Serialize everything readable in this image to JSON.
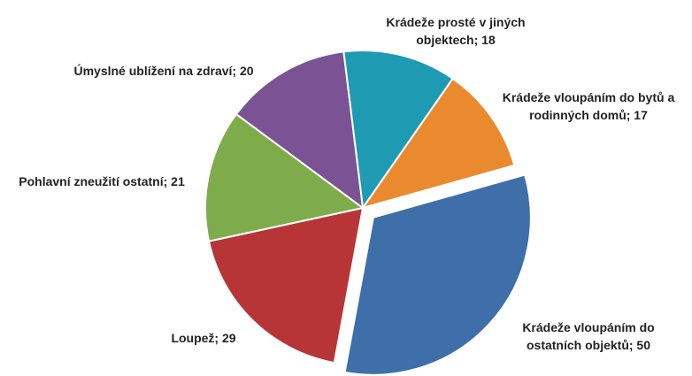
{
  "chart_data": {
    "type": "pie",
    "values": [
      18,
      17,
      50,
      29,
      21,
      20
    ],
    "value_labels": [
      "Krádeže prosté v jiných objektech; 18",
      "Krádeže vloupáním do bytů a rodinných domů; 17",
      "Krádeže vloupáním do ostatních objektů; 50",
      "Loupež; 29",
      "Pohlavní zneužití ostatní; 21",
      "Úmyslné ublížení na zdraví; 20"
    ],
    "colors": [
      "#1e9bb3",
      "#ea8a2e",
      "#3e6fa8",
      "#b83537",
      "#7fac4b",
      "#7b5394"
    ],
    "exploded": [
      false,
      false,
      true,
      false,
      false,
      false
    ]
  }
}
